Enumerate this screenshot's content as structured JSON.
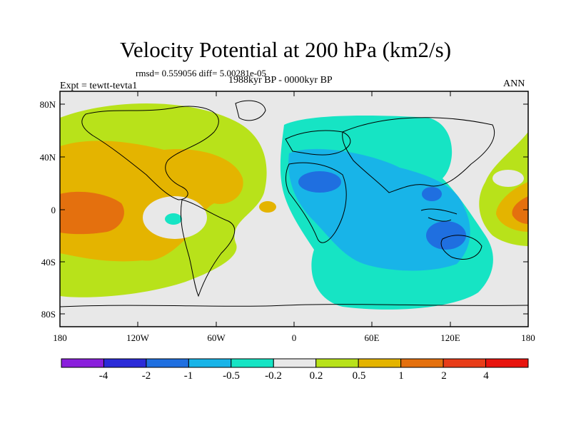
{
  "title": "Velocity Potential at 200 hPa (km2/s)",
  "stats": {
    "rmsd": "rmsd= 0.559056 diff= 5.00281e-05"
  },
  "period": "1988kyr BP - 0000kyr BP",
  "experiment": "Expt = tewtt-tevta1",
  "season": "ANN",
  "axes": {
    "y_ticks": [
      "80N",
      "40N",
      "0",
      "40S",
      "80S"
    ],
    "x_ticks": [
      "180",
      "120W",
      "60W",
      "0",
      "60E",
      "120E",
      "180"
    ]
  },
  "colorbar": {
    "labels": [
      "-4",
      "-2",
      "-1",
      "-0.5",
      "-0.2",
      "0.2",
      "0.5",
      "1",
      "2",
      "4"
    ],
    "colors": [
      "#8a1fdc",
      "#2b2bd8",
      "#1f6fe0",
      "#18b4e8",
      "#16e4c4",
      "#e8e8e8",
      "#b8e21a",
      "#e4b400",
      "#e4700e",
      "#e83c18",
      "#e8140e"
    ]
  },
  "field": {
    "levels": [
      "-0.2..-0.5",
      "-0.5..-1",
      "0.2..0.5",
      "0.5..1",
      "1..2"
    ],
    "colors": {
      "neutral": "#e8e8e8",
      "neg_weak": "#16e4c4",
      "neg_mod": "#18b4e8",
      "neg_strong": "#1f6fe0",
      "pos_weak": "#b8e21a",
      "pos_mod": "#e4b400",
      "pos_strong": "#e4700e"
    }
  }
}
